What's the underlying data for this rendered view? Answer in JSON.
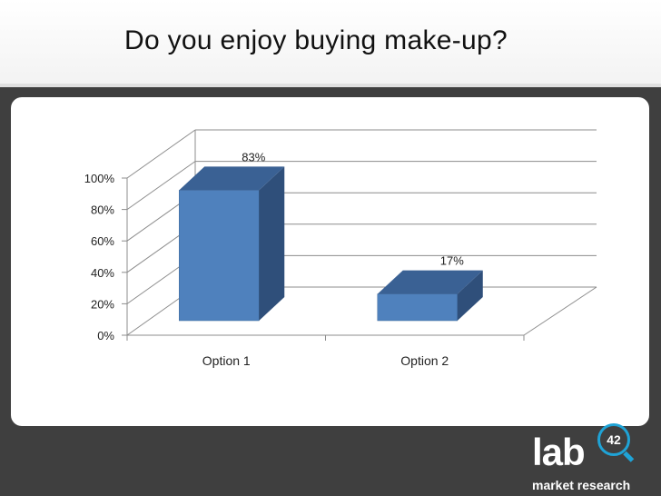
{
  "slide": {
    "title": "Do you enjoy buying make-up?"
  },
  "logo": {
    "wordmark": "lab",
    "badge": "42",
    "subtitle": "market research",
    "accent_color": "#1fa3d6"
  },
  "chart_data": {
    "type": "bar",
    "categories": [
      "Option 1",
      "Option 2"
    ],
    "values": [
      83,
      17
    ],
    "value_labels": [
      "83%",
      "17%"
    ],
    "ylim": [
      0,
      100
    ],
    "yticks": [
      0,
      20,
      40,
      60,
      80,
      100
    ],
    "ytick_labels": [
      "0%",
      "20%",
      "40%",
      "60%",
      "80%",
      "100%"
    ],
    "grid": true,
    "style": "3d",
    "bar_color": "#4f81bd"
  }
}
